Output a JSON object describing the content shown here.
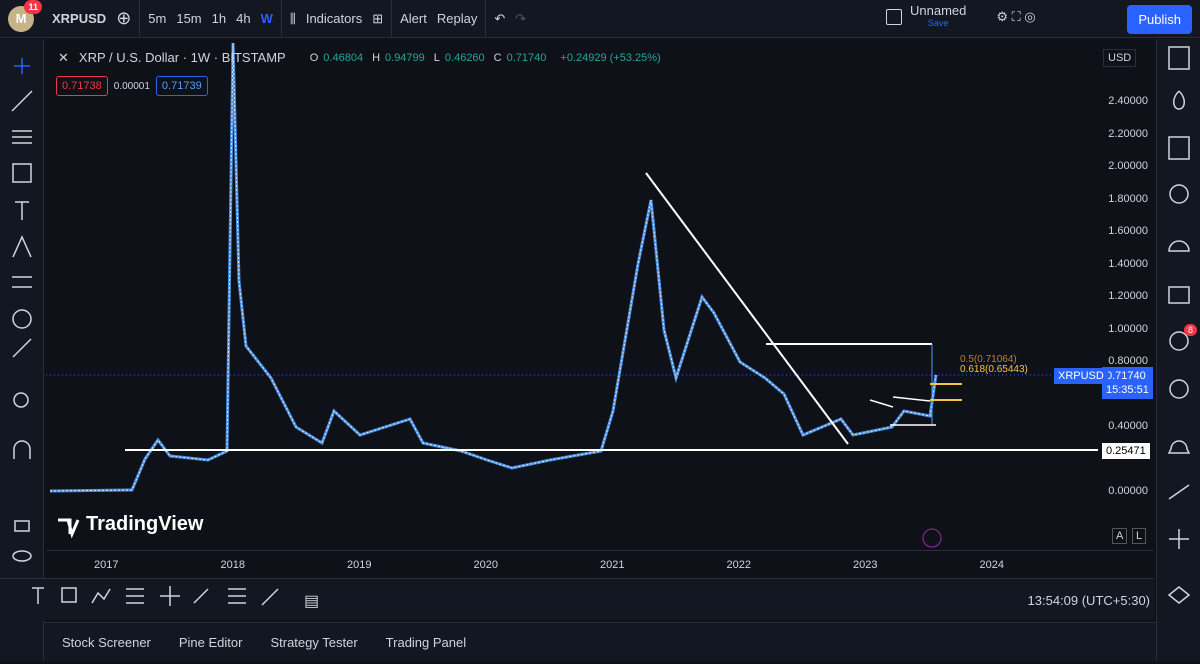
{
  "header": {
    "notification_count": "11",
    "symbol": "XRPUSD",
    "intervals": [
      "5m",
      "15m",
      "1h",
      "4h",
      "W"
    ],
    "indicators": "Indicators",
    "alert": "Alert",
    "replay": "Replay",
    "layout_name": "Unnamed",
    "save_status": "Save",
    "publish": "Publish"
  },
  "chart": {
    "title": "XRP / U.S. Dollar · 1W · BITSTAMP",
    "ohlc": [
      {
        "key": "O",
        "value": "0.46804"
      },
      {
        "key": "H",
        "value": "0.94799"
      },
      {
        "key": "L",
        "value": "0.46260"
      },
      {
        "key": "C",
        "value": "0.71740"
      }
    ],
    "change": "+0.24929 (+53.25%)",
    "sell_price": "0.71738",
    "spread": "0.00001",
    "buy_price": "0.71739",
    "currency": "USD",
    "price_ticks": [
      {
        "value": 2.4,
        "label": "2.40000"
      },
      {
        "value": 2.2,
        "label": "2.20000"
      },
      {
        "value": 2.0,
        "label": "2.00000"
      },
      {
        "value": 1.8,
        "label": "1.80000"
      },
      {
        "value": 1.6,
        "label": "1.60000"
      },
      {
        "value": 1.4,
        "label": "1.40000"
      },
      {
        "value": 1.2,
        "label": "1.20000"
      },
      {
        "value": 1.0,
        "label": "1.00000"
      },
      {
        "value": 0.8,
        "label": "0.80000"
      },
      {
        "value": 0.4,
        "label": "0.40000"
      },
      {
        "value": 0,
        "label": "0.00000"
      }
    ],
    "time_labels": [
      "2017",
      "2018",
      "2019",
      "2020",
      "2021",
      "2022",
      "2023",
      "2024"
    ],
    "symbol_label": "XRPUSD",
    "last_price": "0.71740",
    "countdown": "15:35:51",
    "support_label": "0.25471",
    "fib_labels": [
      "0.5(0.71064)",
      "0.618(0.65443)"
    ],
    "watermark": "TradingView",
    "scale_buttons": [
      "A",
      "L"
    ]
  },
  "status": {
    "clock": "13:54:09 (UTC+5:30)"
  },
  "bottom_panel": {
    "tabs": [
      "Stock Screener",
      "Pine Editor",
      "Strategy Tester",
      "Trading Panel"
    ]
  },
  "side_badge": "8"
}
